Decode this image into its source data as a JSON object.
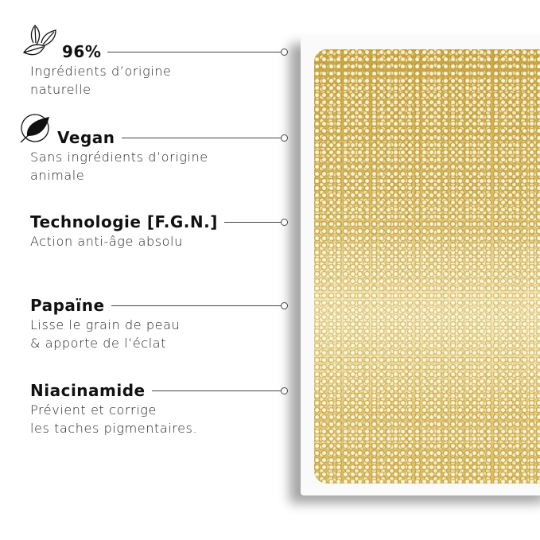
{
  "features": [
    {
      "title": "96%",
      "description": [
        "Ingrédients d’origine",
        "naturelle"
      ],
      "icon": "leaves-icon"
    },
    {
      "title": "Vegan",
      "description": [
        "Sans ingrédients d’origine",
        "animale"
      ],
      "icon": "vegan-leaf-icon"
    },
    {
      "title": "Technologie [F.G.N.]",
      "description": [
        "Action anti-âge absolu"
      ]
    },
    {
      "title": "Papaïne",
      "description": [
        "Lisse le grain de peau",
        "& apporte de l’éclat"
      ]
    },
    {
      "title": "Niacinamide",
      "description": [
        "Prévient et corrige",
        "les taches pigmentaires."
      ]
    }
  ],
  "colors": {
    "gold": "#d8bb5e",
    "text": "#111111"
  }
}
